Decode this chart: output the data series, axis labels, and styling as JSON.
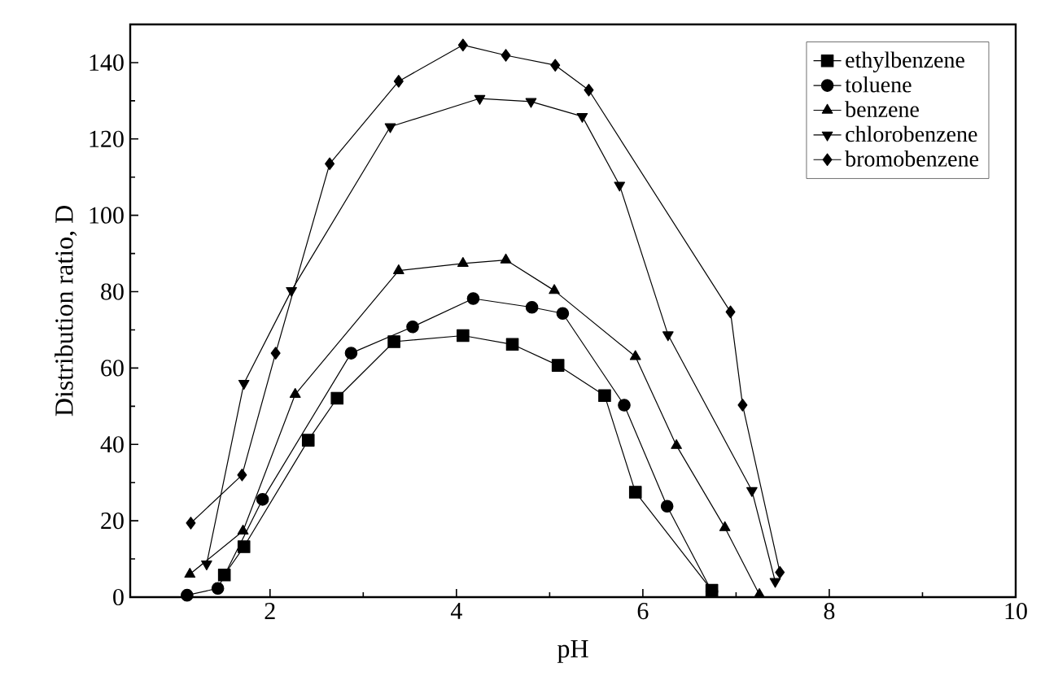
{
  "chart_data": {
    "type": "line",
    "xlabel": "pH",
    "ylabel": "Distribution ratio, D",
    "xlim": [
      0.5,
      10
    ],
    "ylim": [
      0,
      150
    ],
    "xticks": [
      2,
      4,
      6,
      8,
      10
    ],
    "yticks": [
      0,
      20,
      40,
      60,
      80,
      100,
      120,
      140
    ],
    "grid": false,
    "legend": "top right",
    "line_style": "solid",
    "series": [
      {
        "name": "ethylbenzene",
        "color": "#000000",
        "marker": "square",
        "x": [
          1.51,
          1.72,
          2.41,
          2.72,
          3.33,
          4.07,
          4.6,
          5.09,
          5.59,
          5.92,
          6.74
        ],
        "values": [
          5.8,
          13.2,
          41.1,
          52.1,
          66.9,
          68.5,
          66.2,
          60.7,
          52.8,
          27.5,
          1.8
        ]
      },
      {
        "name": "toluene",
        "color": "#000000",
        "marker": "circle",
        "x": [
          1.11,
          1.44,
          1.92,
          2.87,
          3.53,
          4.18,
          4.81,
          5.14,
          5.8,
          6.26,
          6.74
        ],
        "values": [
          0.5,
          2.3,
          25.6,
          63.9,
          70.8,
          78.2,
          75.9,
          74.3,
          50.3,
          23.8,
          1.5
        ]
      },
      {
        "name": "benzene",
        "color": "#000000",
        "marker": "triangle",
        "x": [
          1.14,
          1.71,
          2.27,
          3.38,
          4.07,
          4.53,
          5.05,
          5.92,
          6.36,
          6.88,
          7.25
        ],
        "values": [
          6.0,
          17.3,
          53.1,
          85.5,
          87.4,
          88.3,
          80.3,
          63.0,
          39.7,
          18.2,
          0.7
        ]
      },
      {
        "name": "chlorobenzene",
        "color": "#000000",
        "marker": "triangle-down",
        "x": [
          1.32,
          1.72,
          2.23,
          3.29,
          4.25,
          4.8,
          5.35,
          5.75,
          6.27,
          7.17,
          7.42
        ],
        "values": [
          8.7,
          56.0,
          80.3,
          123.2,
          130.6,
          129.8,
          125.9,
          107.9,
          68.7,
          27.9,
          4.1
        ]
      },
      {
        "name": "bromobenzene",
        "color": "#000000",
        "marker": "diamond",
        "x": [
          1.15,
          1.7,
          2.06,
          2.64,
          3.38,
          4.07,
          4.53,
          5.06,
          5.42,
          6.94,
          7.07,
          7.47
        ],
        "values": [
          19.4,
          32.0,
          63.9,
          113.5,
          135.1,
          144.6,
          141.9,
          139.3,
          132.8,
          74.7,
          50.3,
          6.5
        ]
      }
    ]
  }
}
